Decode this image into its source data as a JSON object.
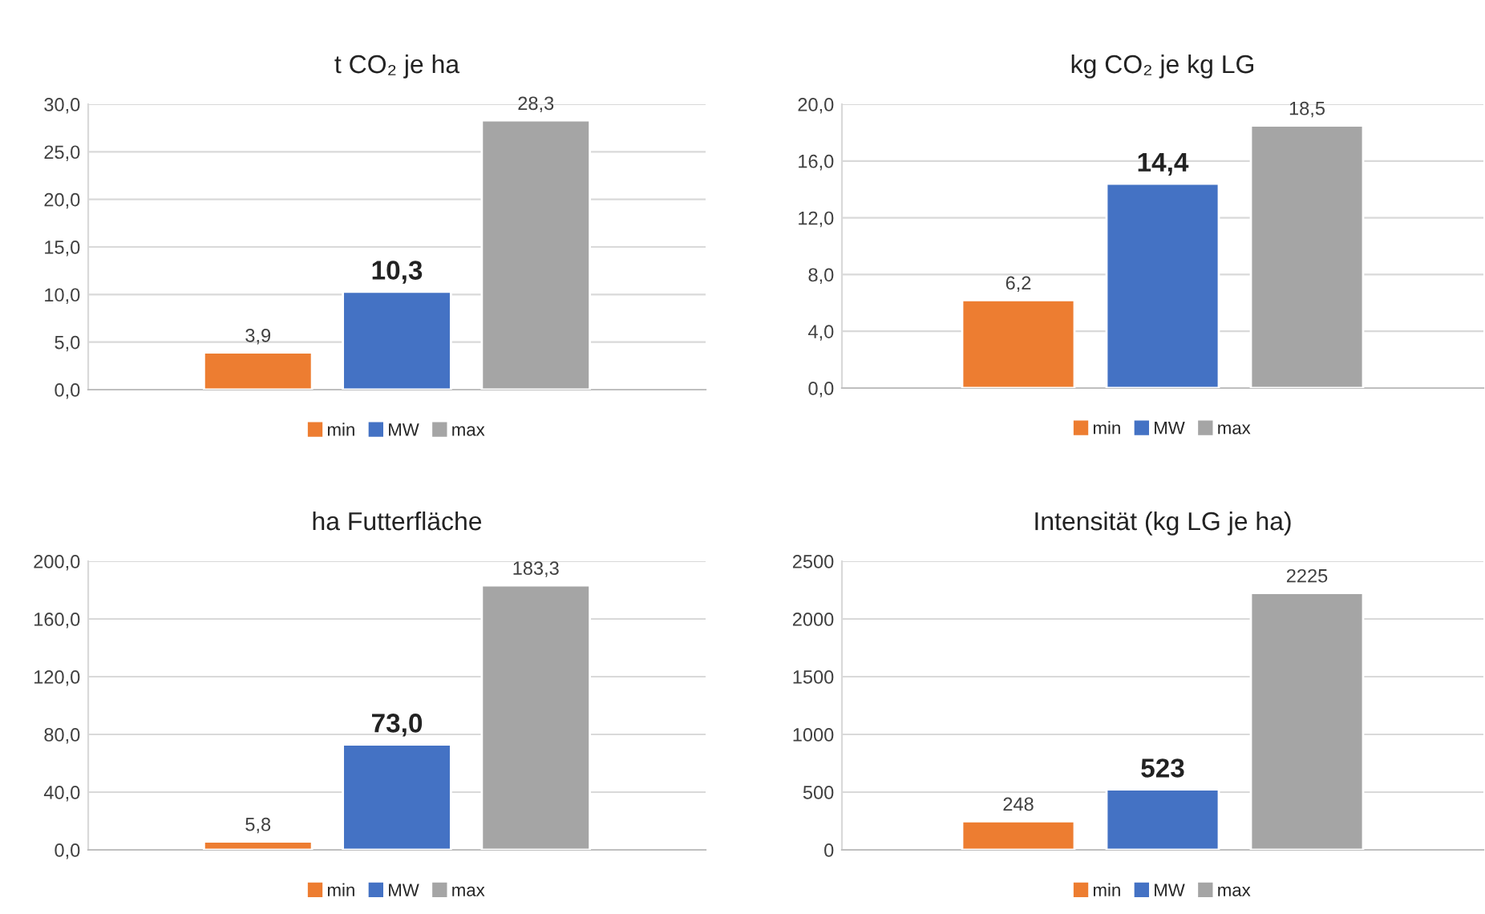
{
  "chart_data": [
    {
      "type": "bar",
      "title": "t CO₂ je ha",
      "categories": [
        null
      ],
      "legend": "bottom",
      "grid": "y",
      "ylim": [
        0,
        30
      ],
      "yticks": [
        {
          "value": 0,
          "label": "0,0"
        },
        {
          "value": 5,
          "label": "5,0"
        },
        {
          "value": 10,
          "label": "10,0"
        },
        {
          "value": 15,
          "label": "15,0"
        },
        {
          "value": 20,
          "label": "20,0"
        },
        {
          "value": 25,
          "label": "25,0"
        },
        {
          "value": 30,
          "label": "30,0"
        }
      ],
      "series": [
        {
          "name": "min",
          "color": "#ed7d31",
          "values": [
            3.9
          ],
          "value_labels": [
            "3,9"
          ]
        },
        {
          "name": "MW",
          "color": "#4472c4",
          "values": [
            10.3
          ],
          "value_labels": [
            "10,3"
          ]
        },
        {
          "name": "max",
          "color": "#a5a5a5",
          "values": [
            28.3
          ],
          "value_labels": [
            "28,3"
          ]
        }
      ]
    },
    {
      "type": "bar",
      "title": "kg CO₂ je kg LG",
      "categories": [
        null
      ],
      "legend": "bottom",
      "grid": "y",
      "ylim": [
        0,
        20
      ],
      "yticks": [
        {
          "value": 0,
          "label": "0,0"
        },
        {
          "value": 4,
          "label": "4,0"
        },
        {
          "value": 8,
          "label": "8,0"
        },
        {
          "value": 12,
          "label": "12,0"
        },
        {
          "value": 16,
          "label": "16,0"
        },
        {
          "value": 20,
          "label": "20,0"
        }
      ],
      "series": [
        {
          "name": "min",
          "color": "#ed7d31",
          "values": [
            6.2
          ],
          "value_labels": [
            "6,2"
          ]
        },
        {
          "name": "MW",
          "color": "#4472c4",
          "values": [
            14.4
          ],
          "value_labels": [
            "14,4"
          ]
        },
        {
          "name": "max",
          "color": "#a5a5a5",
          "values": [
            18.5
          ],
          "value_labels": [
            "18,5"
          ]
        }
      ]
    },
    {
      "type": "bar",
      "title": "ha Futterfläche",
      "categories": [
        null
      ],
      "legend": "bottom",
      "grid": "y",
      "ylim": [
        0,
        200
      ],
      "yticks": [
        {
          "value": 0,
          "label": "0,0"
        },
        {
          "value": 40,
          "label": "40,0"
        },
        {
          "value": 80,
          "label": "80,0"
        },
        {
          "value": 120,
          "label": "120,0"
        },
        {
          "value": 160,
          "label": "160,0"
        },
        {
          "value": 200,
          "label": "200,0"
        }
      ],
      "series": [
        {
          "name": "min",
          "color": "#ed7d31",
          "values": [
            5.8
          ],
          "value_labels": [
            "5,8"
          ]
        },
        {
          "name": "MW",
          "color": "#4472c4",
          "values": [
            73.0
          ],
          "value_labels": [
            "73,0"
          ]
        },
        {
          "name": "max",
          "color": "#a5a5a5",
          "values": [
            183.3
          ],
          "value_labels": [
            "183,3"
          ]
        }
      ]
    },
    {
      "type": "bar",
      "title": "Intensität (kg LG je ha)",
      "categories": [
        null
      ],
      "legend": "bottom",
      "grid": "y",
      "ylim": [
        0,
        2500
      ],
      "yticks": [
        0,
        500,
        1000,
        1500,
        2000,
        2500
      ],
      "series": [
        {
          "name": "min",
          "color": "#ed7d31",
          "values": [
            248
          ],
          "value_labels": [
            "248"
          ]
        },
        {
          "name": "MW",
          "color": "#4472c4",
          "values": [
            523
          ],
          "value_labels": [
            "523"
          ]
        },
        {
          "name": "max",
          "color": "#a5a5a5",
          "values": [
            2225
          ],
          "value_labels": [
            "2225"
          ]
        }
      ]
    }
  ]
}
